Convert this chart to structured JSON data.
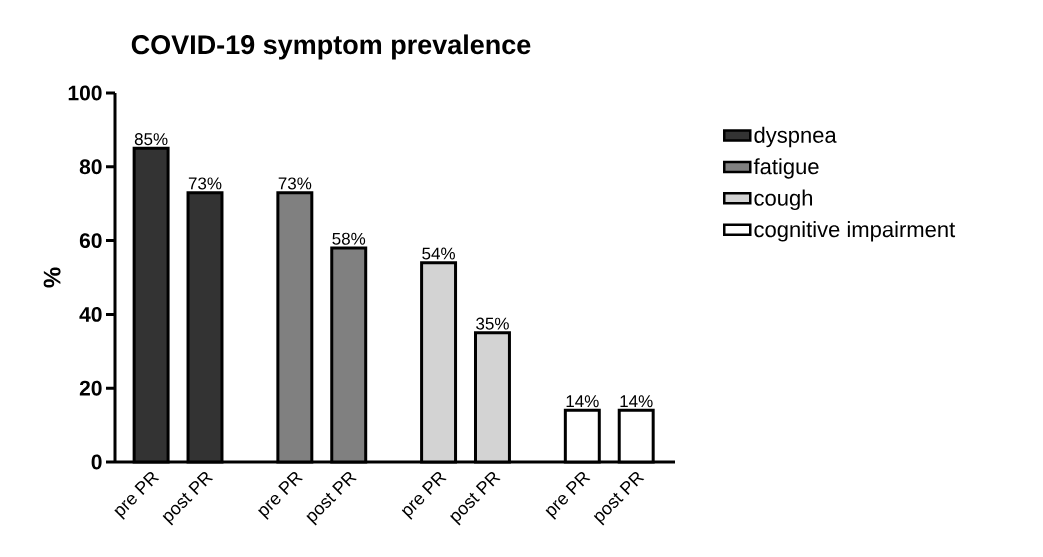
{
  "chart_data": {
    "type": "bar",
    "title": "COVID-19 symptom prevalence",
    "ylabel": "%",
    "categories": [
      "pre PR",
      "post PR",
      "pre PR",
      "post PR",
      "pre PR",
      "post PR",
      "pre PR",
      "post PR"
    ],
    "series": [
      {
        "name": "dyspnea",
        "color": "#333333",
        "values": [
          85,
          73,
          null,
          null,
          null,
          null,
          null,
          null
        ],
        "value_labels": [
          "85%",
          "73%",
          null,
          null,
          null,
          null,
          null,
          null
        ]
      },
      {
        "name": "fatigue",
        "color": "#808080",
        "values": [
          null,
          null,
          73,
          58,
          null,
          null,
          null,
          null
        ],
        "value_labels": [
          null,
          null,
          "73%",
          "58%",
          null,
          null,
          null,
          null
        ]
      },
      {
        "name": "cough",
        "color": "#d3d3d3",
        "values": [
          null,
          null,
          null,
          null,
          54,
          35,
          null,
          null
        ],
        "value_labels": [
          null,
          null,
          null,
          null,
          "54%",
          "35%",
          null,
          null
        ]
      },
      {
        "name": "cognitive impairment",
        "color": "#ffffff",
        "values": [
          null,
          null,
          null,
          null,
          null,
          null,
          14,
          14
        ],
        "value_labels": [
          null,
          null,
          null,
          null,
          null,
          null,
          "14%",
          "14%"
        ]
      }
    ],
    "ylim": [
      0,
      100
    ],
    "yticks": [
      0,
      20,
      40,
      60,
      80,
      100
    ],
    "legend": "right"
  }
}
